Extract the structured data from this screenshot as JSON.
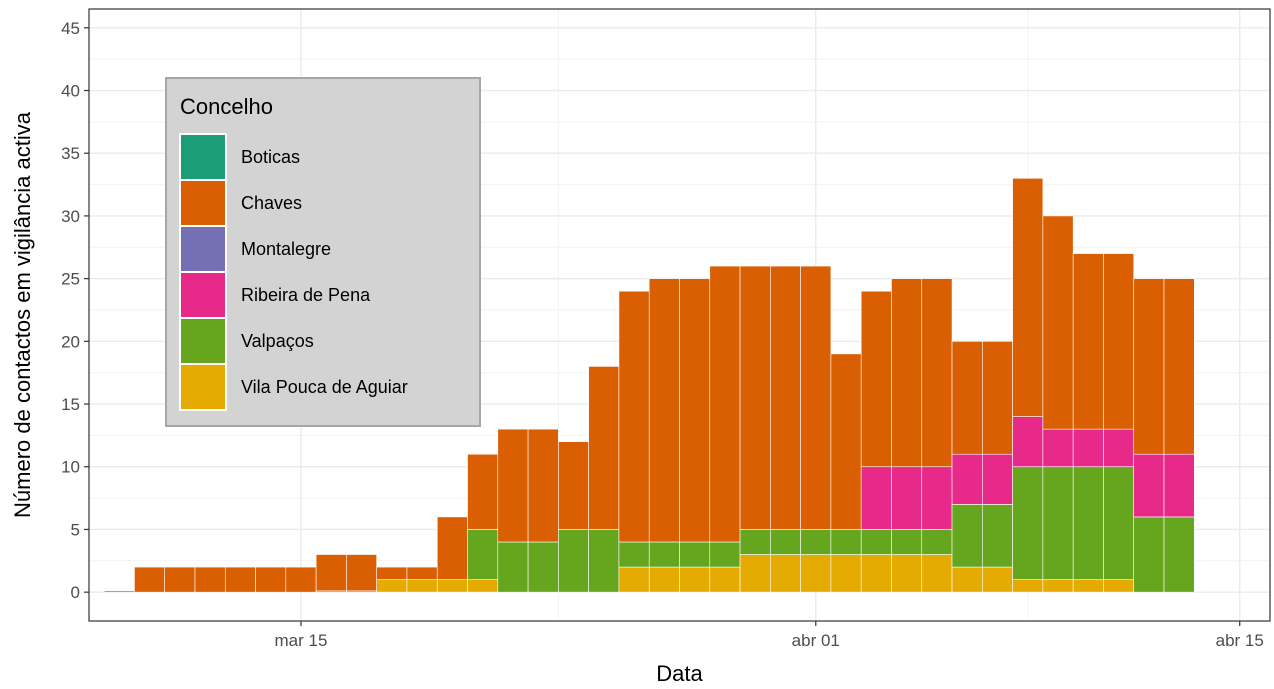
{
  "chart_data": {
    "type": "bar",
    "stacked": true,
    "xlabel": "Data",
    "ylabel": "Número de contactos em vigilância activa",
    "ylim": [
      -2.3,
      46.5
    ],
    "yticks": [
      0,
      5,
      10,
      15,
      20,
      25,
      30,
      35,
      40,
      45
    ],
    "x_start": "2020-03-08",
    "x_end": "2020-04-16",
    "x_ticks": [
      {
        "date": "2020-03-15",
        "label": "mar 15"
      },
      {
        "date": "2020-04-01",
        "label": "abr 01"
      },
      {
        "date": "2020-04-15",
        "label": "abr 15"
      }
    ],
    "grid": true,
    "legend": {
      "title": "Concelho",
      "placement": "top-left"
    },
    "dates": [
      "2020-03-09",
      "2020-03-10",
      "2020-03-11",
      "2020-03-12",
      "2020-03-13",
      "2020-03-14",
      "2020-03-15",
      "2020-03-16",
      "2020-03-17",
      "2020-03-18",
      "2020-03-19",
      "2020-03-20",
      "2020-03-21",
      "2020-03-22",
      "2020-03-23",
      "2020-03-24",
      "2020-03-25",
      "2020-03-26",
      "2020-03-27",
      "2020-03-28",
      "2020-03-29",
      "2020-03-30",
      "2020-03-31",
      "2020-04-01",
      "2020-04-02",
      "2020-04-03",
      "2020-04-04",
      "2020-04-05",
      "2020-04-06",
      "2020-04-07",
      "2020-04-08",
      "2020-04-09",
      "2020-04-10",
      "2020-04-11",
      "2020-04-12",
      "2020-04-13",
      "2020-04-14"
    ],
    "series": [
      {
        "name": "Vila Pouca de Aguiar",
        "color": "#E6AB02",
        "values": [
          0,
          0,
          0,
          0,
          0,
          0,
          0,
          0,
          0,
          1,
          1,
          1,
          1,
          0,
          0,
          0,
          0,
          2,
          2,
          2,
          2,
          3,
          3,
          3,
          3,
          3,
          3,
          3,
          2,
          2,
          1,
          1,
          1,
          1,
          0,
          0,
          0
        ]
      },
      {
        "name": "Valpaços",
        "color": "#66A61E",
        "values": [
          0,
          0,
          0,
          0,
          0,
          0,
          0,
          0,
          0,
          0,
          0,
          0,
          4,
          4,
          4,
          5,
          5,
          2,
          2,
          2,
          2,
          2,
          2,
          2,
          2,
          2,
          2,
          2,
          5,
          5,
          9,
          9,
          9,
          9,
          6,
          6,
          0
        ]
      },
      {
        "name": "Ribeira de Pena",
        "color": "#E7298A",
        "values": [
          0,
          0,
          0,
          0,
          0,
          0,
          0,
          0,
          0,
          0,
          0,
          0,
          0,
          0,
          0,
          0,
          0,
          0,
          0,
          0,
          0,
          0,
          0,
          0,
          0,
          5,
          5,
          5,
          4,
          4,
          4,
          3,
          3,
          3,
          5,
          5,
          0
        ]
      },
      {
        "name": "Montalegre",
        "color": "#7570B3",
        "values": [
          0,
          0,
          0,
          0,
          0,
          0,
          0,
          0.1,
          0.1,
          0,
          0,
          0,
          0,
          0,
          0,
          0,
          0,
          0,
          0,
          0,
          0,
          0,
          0,
          0,
          0,
          0,
          0,
          0,
          0,
          0,
          0,
          0,
          0,
          0,
          0,
          0,
          0
        ]
      },
      {
        "name": "Chaves",
        "color": "#D95F02",
        "values": [
          0,
          2,
          2,
          2,
          2,
          2,
          2,
          2.9,
          2.9,
          1,
          1,
          5,
          6,
          9,
          9,
          7,
          13,
          20,
          21,
          21,
          22,
          21,
          21,
          21,
          14,
          14,
          15,
          15,
          9,
          9,
          19,
          17,
          14,
          14,
          14,
          14,
          0
        ]
      },
      {
        "name": "Boticas",
        "color": "#1B9E77",
        "values": [
          0.1,
          0,
          0,
          0,
          0,
          0,
          0,
          0,
          0,
          0,
          0,
          0,
          0,
          0,
          0,
          0,
          0,
          0,
          0,
          0,
          0,
          0,
          0,
          0,
          0,
          0,
          0,
          0,
          0,
          0,
          0,
          0,
          0,
          0,
          0,
          0,
          0
        ]
      }
    ],
    "legend_order": [
      "Boticas",
      "Chaves",
      "Montalegre",
      "Ribeira de Pena",
      "Valpaços",
      "Vila Pouca de Aguiar"
    ]
  }
}
